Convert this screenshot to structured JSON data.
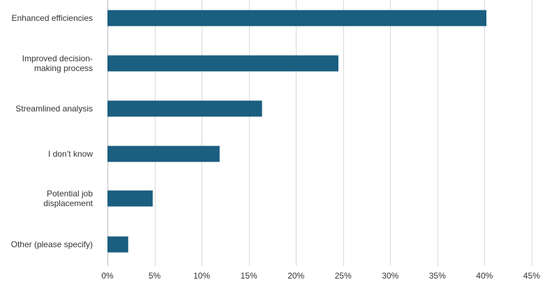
{
  "chart_data": {
    "type": "bar",
    "orientation": "horizontal",
    "categories": [
      "Enhanced efficiencies",
      "Improved decision-making process",
      "Streamlined analysis",
      "I don’t know",
      "Potential job displacement",
      "Other (please specify)"
    ],
    "category_lines": [
      [
        "Enhanced efficiencies"
      ],
      [
        "Improved decision-",
        "making process"
      ],
      [
        "Streamlined analysis"
      ],
      [
        "I don’t know"
      ],
      [
        "Potential job",
        "displacement"
      ],
      [
        "Other (please specify)"
      ]
    ],
    "values": [
      40.2,
      24.5,
      16.4,
      11.9,
      4.8,
      2.2
    ],
    "x_ticks": [
      0,
      5,
      10,
      15,
      20,
      25,
      30,
      35,
      40,
      45
    ],
    "x_tick_labels": [
      "0%",
      "5%",
      "10%",
      "15%",
      "20%",
      "25%",
      "30%",
      "35%",
      "40%",
      "45%"
    ],
    "xlim": [
      0,
      45
    ],
    "title": "",
    "xlabel": "",
    "ylabel": "",
    "grid": "vertical",
    "legend": "none",
    "bar_color": "#1a5e80"
  }
}
